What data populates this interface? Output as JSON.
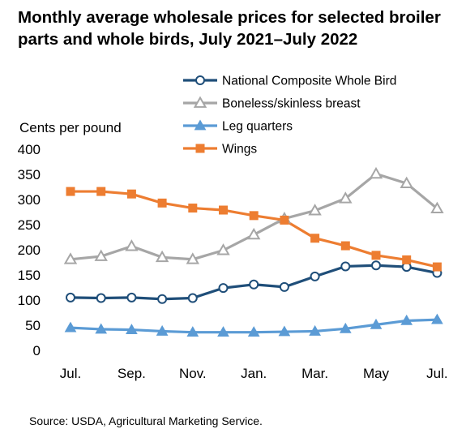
{
  "chart_data": {
    "type": "line",
    "title": "Monthly average wholesale prices for selected broiler parts and whole birds, July 2021–July 2022",
    "ylabel": "Cents per pound",
    "xlabel": "",
    "ylim": [
      0,
      400
    ],
    "yticks": [
      "0",
      "50",
      "100",
      "150",
      "200",
      "250",
      "300",
      "350",
      "400"
    ],
    "xtick_labels": [
      "Jul.",
      "Sep.",
      "Nov.",
      "Jan.",
      "Mar.",
      "May",
      "Jul."
    ],
    "x": [
      "Jul 2021",
      "Aug 2021",
      "Sep 2021",
      "Oct 2021",
      "Nov 2021",
      "Dec 2021",
      "Jan 2022",
      "Feb 2022",
      "Mar 2022",
      "Apr 2022",
      "May 2022",
      "Jun 2022",
      "Jul 2022"
    ],
    "grid": false,
    "legend_position": "top-right",
    "series": [
      {
        "name": "National Composite Whole Bird",
        "color": "#1f4e79",
        "marker": "circle",
        "values": [
          105,
          104,
          105,
          102,
          104,
          124,
          131,
          126,
          147,
          167,
          169,
          166,
          154
        ]
      },
      {
        "name": "Boneless/skinless breast",
        "color": "#a6a6a6",
        "marker": "triangle-open",
        "values": [
          181,
          187,
          207,
          185,
          181,
          199,
          230,
          262,
          278,
          302,
          351,
          332,
          282
        ]
      },
      {
        "name": "Leg quarters",
        "color": "#5b9bd5",
        "marker": "triangle",
        "values": [
          45,
          42,
          41,
          38,
          36,
          36,
          36,
          37,
          38,
          43,
          51,
          59,
          61
        ]
      },
      {
        "name": "Wings",
        "color": "#ed7d31",
        "marker": "square",
        "values": [
          316,
          316,
          311,
          293,
          283,
          279,
          268,
          259,
          223,
          208,
          189,
          180,
          166
        ]
      }
    ]
  },
  "source": "Source: USDA, Agricultural Marketing Service."
}
